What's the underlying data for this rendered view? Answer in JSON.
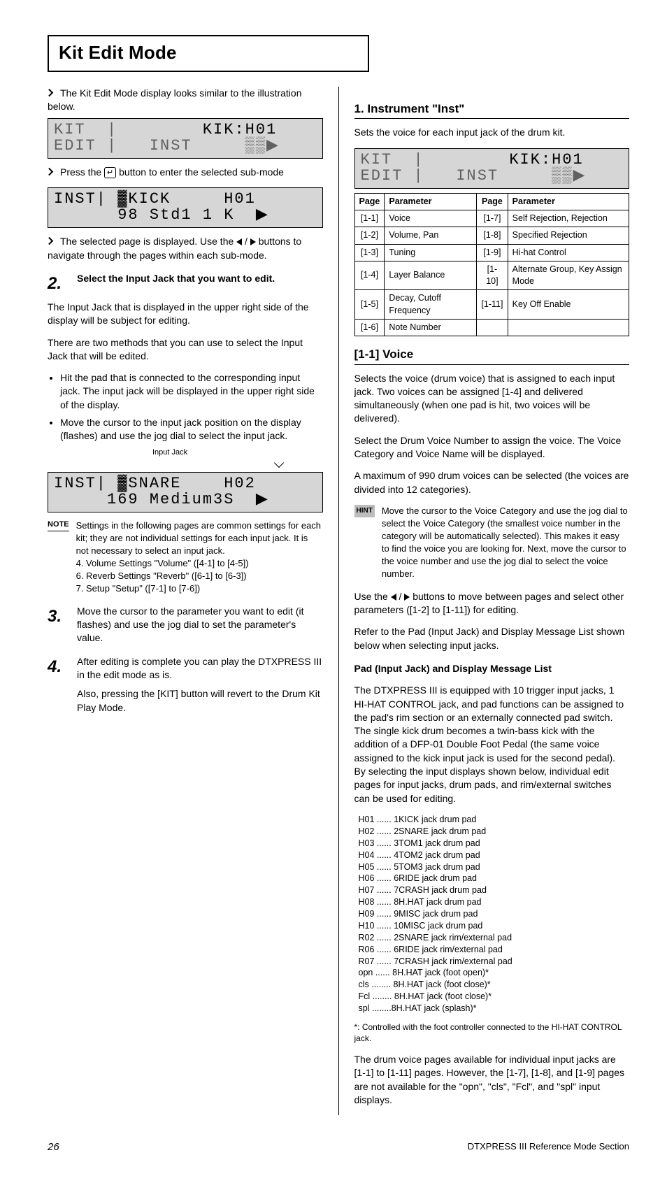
{
  "page": {
    "title": "Kit Edit Mode",
    "footer_left": "DTXPRESS III Reference Mode Section",
    "footer_page": "26"
  },
  "left": {
    "intro": "<lead/>The Kit Edit Mode display looks similar to the illustration below.",
    "lcd1_l1_dim": "KIT  |        ",
    "lcd1_l1_hi": "KIK:H01",
    "lcd1_l2_dim": "EDIT |   INST     ▒▒▶",
    "under_lcd1": "<lead/>Press the <key>↵</key> button to enter the selected sub-mode",
    "lcd2_l1": "INST| ▓KICK     H01",
    "lcd2_l2": "      98 Std1 1 K  ▶",
    "under_lcd2": "<lead/>The selected page is displayed. Use the <tl/> / <tr/> buttons to navigate through the pages within each sub-mode.",
    "step_num": "2.",
    "step_txt_bold": "Select the Input Jack that you want to edit.",
    "step_sub": "The Input Jack that is displayed in the upper right side of the display will be subject for editing.",
    "step_p2": "There are two methods that you can use to select the Input Jack that will be edited.",
    "bullets": [
      "Hit the pad that is connected to the corresponding input jack. The input jack will be displayed in the upper right side of the display.",
      "Move the cursor to the input jack position on the display (flashes) and use the jog dial to select the input jack."
    ],
    "arrow_annot": "Input Jack",
    "lcd3_l1": "INST| ▓SNARE    H02",
    "lcd3_l2": "     169 Medium3S  ▶",
    "note_label": "NOTE",
    "note_body": "Settings in the following pages are common settings for each kit; they are not individual settings for each input jack. It is not necessary to select an input jack.\n4. Volume Settings \"Volume\" ([4-1] to [4-5])\n6. Reverb Settings \"Reverb\" ([6-1] to [6-3])\n7. Setup \"Setup\" ([7-1] to [7-6])",
    "step3_num": "3.",
    "step3_txt": "Move the cursor to the parameter you want to edit (it flashes) and use the jog dial to set the parameter's value.",
    "step4_num": "4.",
    "step4_txt_a": "After editing is complete you can play the DTXPRESS III in the edit mode as is.",
    "step4_txt_b": "Also, pressing the [KIT] button will revert to the Drum Kit Play Mode."
  },
  "right": {
    "h1": "1. Instrument \"Inst\"",
    "h1_sub": "Sets the voice for each input jack of the drum kit.",
    "lcdA_l1_dim": "KIT  |        ",
    "lcdA_l1_hi": "KIK:H01",
    "lcdA_l2_dim": "EDIT |   INST     ▒▒▶",
    "table": {
      "cols": [
        "Page",
        "Parameter",
        "Page",
        "Parameter"
      ],
      "rows": [
        [
          "[1-1]",
          "Voice",
          "[1-7]",
          "Self Rejection, Rejection"
        ],
        [
          "[1-2]",
          "Volume, Pan",
          "[1-8]",
          "Specified Rejection"
        ],
        [
          "[1-3]",
          "Tuning",
          "[1-9]",
          "Hi-hat Control"
        ],
        [
          "[1-4]",
          "Layer Balance",
          "[1-10]",
          "Alternate Group, Key Assign Mode"
        ],
        [
          "[1-5]",
          "Decay, Cutoff Frequency",
          "[1-11]",
          "Key Off Enable"
        ],
        [
          "[1-6]",
          "Note Number",
          "",
          ""
        ]
      ]
    },
    "h11": "[1-1] Voice",
    "p11a": "Selects the voice (drum voice) that is assigned to each input jack. Two voices can be assigned [1-4] and delivered simultaneously (when one pad is hit, two voices will be delivered).",
    "p11b": "Select the Drum Voice Number to assign the voice. The Voice Category and Voice Name will be displayed.",
    "p11c": "A maximum of 990 drum voices can be selected (the voices are divided into 12 categories).",
    "hint_label": "HINT",
    "hint_body": "Move the cursor to the Voice Category and use the jog dial to select the Voice Category (the smallest voice number in the category will be automatically selected). This makes it easy to find the voice you are looking for. Next, move the cursor to the voice number and use the jog dial to select the voice number.",
    "p11d": "Use the <tl/> / <tr/> buttons to move between pages and select other parameters ([1-2] to [1-11]) for editing.",
    "p11e": "Refer to the Pad (Input Jack) and Display Message List shown below when selecting input jacks.",
    "h_list": "Pad (Input Jack) and Display Message List",
    "p_list_intro": "The DTXPRESS III is equipped with 10 trigger input jacks, 1 HI-HAT CONTROL jack, and pad functions can be assigned to the pad's rim section or an externally connected pad switch. The single kick drum becomes a twin-bass kick with the addition of a DFP-01 Double Foot Pedal (the same voice assigned to the kick input jack is used for the second pedal). By selecting the input displays shown below, individual edit pages for input jacks, drum pads, and rim/external switches can be used for editing.",
    "jack_list": [
      "H01 ...... 1KICK jack drum pad",
      "H02 ...... 2SNARE jack drum pad",
      "H03 ...... 3TOM1 jack drum pad",
      "H04 ...... 4TOM2 jack drum pad",
      "H05 ...... 5TOM3 jack drum pad",
      "H06 ...... 6RIDE jack drum pad",
      "H07 ...... 7CRASH jack drum pad",
      "H08 ...... 8H.HAT jack drum pad",
      "H09 ...... 9MISC jack drum pad",
      "H10 ...... 10MISC jack drum pad",
      "R02 ...... 2SNARE jack rim/external pad",
      "R06 ...... 6RIDE jack rim/external pad",
      "R07 ...... 7CRASH jack rim/external pad",
      "opn ...... 8H.HAT jack (foot open)*",
      "cls ........ 8H.HAT jack (foot close)*",
      "Fcl ........ 8H.HAT jack (foot close)*",
      "spl ........8H.HAT jack (splash)*"
    ],
    "asterisk": "*: Controlled with the foot controller connected to the HI-HAT CONTROL jack.",
    "p_last": "The drum voice pages available for individual input jacks are [1-1] to [1-11] pages. However, the [1-7], [1-8], and [1-9] pages are not available for the \"opn\", \"cls\", \"Fcl\", and \"spl\" input displays."
  }
}
